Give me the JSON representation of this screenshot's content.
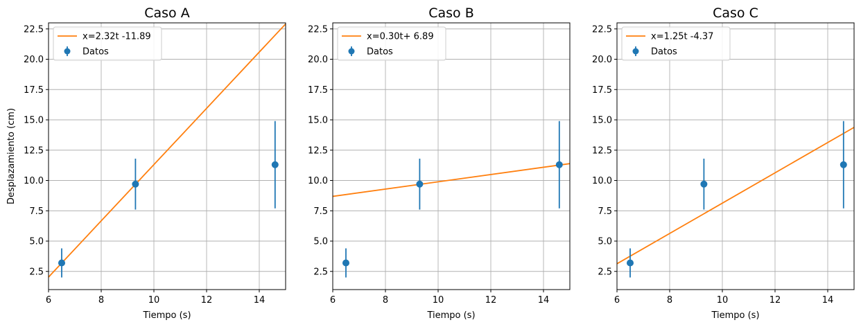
{
  "figure": {
    "colors": {
      "fit": "#ff7f0e",
      "data": "#1f77b4",
      "grid": "#b0b0b0"
    }
  },
  "chart_data": [
    {
      "type": "scatter",
      "title": "Caso A",
      "xlabel": "Tiempo (s)",
      "ylabel": "Desplazamiento (cm)",
      "xlim": [
        6,
        15
      ],
      "ylim": [
        1.0,
        23.0
      ],
      "xticks": [
        6,
        8,
        10,
        12,
        14
      ],
      "xtick_labels": [
        "6",
        "8",
        "10",
        "12",
        "14"
      ],
      "yticks": [
        2.5,
        5.0,
        7.5,
        10.0,
        12.5,
        15.0,
        17.5,
        20.0,
        22.5
      ],
      "ytick_labels": [
        "2.5",
        "5.0",
        "7.5",
        "10.0",
        "12.5",
        "15.0",
        "17.5",
        "20.0",
        "22.5"
      ],
      "grid": true,
      "legend_position": "top-left",
      "fit": {
        "label": "x=2.32t -11.89",
        "slope": 2.32,
        "intercept": -11.89
      },
      "points": {
        "label": "Datos",
        "x": [
          6.5,
          9.3,
          14.6
        ],
        "y": [
          3.2,
          9.7,
          11.3
        ],
        "yerr": [
          1.2,
          2.1,
          3.6
        ]
      }
    },
    {
      "type": "scatter",
      "title": "Caso B",
      "xlabel": "Tiempo (s)",
      "ylabel": "",
      "xlim": [
        6,
        15
      ],
      "ylim": [
        1.0,
        23.0
      ],
      "xticks": [
        6,
        8,
        10,
        12,
        14
      ],
      "xtick_labels": [
        "6",
        "8",
        "10",
        "12",
        "14"
      ],
      "yticks": [
        2.5,
        5.0,
        7.5,
        10.0,
        12.5,
        15.0,
        17.5,
        20.0,
        22.5
      ],
      "ytick_labels": [
        "2.5",
        "5.0",
        "7.5",
        "10.0",
        "12.5",
        "15.0",
        "17.5",
        "20.0",
        "22.5"
      ],
      "grid": true,
      "legend_position": "top-left",
      "fit": {
        "label": "x=0.30t+ 6.89",
        "slope": 0.3,
        "intercept": 6.89
      },
      "points": {
        "label": "Datos",
        "x": [
          6.5,
          9.3,
          14.6
        ],
        "y": [
          3.2,
          9.7,
          11.3
        ],
        "yerr": [
          1.2,
          2.1,
          3.6
        ]
      }
    },
    {
      "type": "scatter",
      "title": "Caso C",
      "xlabel": "Tiempo (s)",
      "ylabel": "",
      "xlim": [
        6,
        15
      ],
      "ylim": [
        1.0,
        23.0
      ],
      "xticks": [
        6,
        8,
        10,
        12,
        14
      ],
      "xtick_labels": [
        "6",
        "8",
        "10",
        "12",
        "14"
      ],
      "yticks": [
        2.5,
        5.0,
        7.5,
        10.0,
        12.5,
        15.0,
        17.5,
        20.0,
        22.5
      ],
      "ytick_labels": [
        "2.5",
        "5.0",
        "7.5",
        "10.0",
        "12.5",
        "15.0",
        "17.5",
        "20.0",
        "22.5"
      ],
      "grid": true,
      "legend_position": "top-left",
      "fit": {
        "label": "x=1.25t -4.37",
        "slope": 1.25,
        "intercept": -4.37
      },
      "points": {
        "label": "Datos",
        "x": [
          6.5,
          9.3,
          14.6
        ],
        "y": [
          3.2,
          9.7,
          11.3
        ],
        "yerr": [
          1.2,
          2.1,
          3.6
        ]
      }
    }
  ]
}
